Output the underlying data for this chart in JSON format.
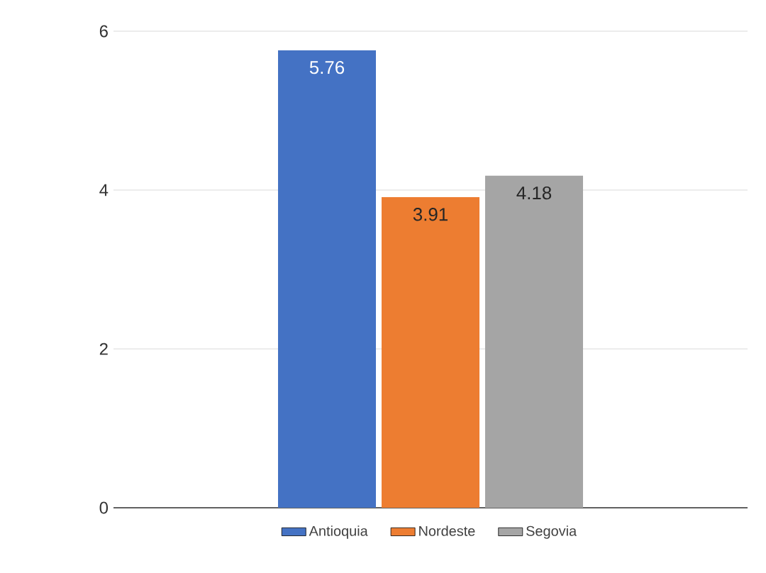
{
  "chart_data": {
    "type": "bar",
    "categories": [
      null
    ],
    "series": [
      {
        "name": "Antioquia",
        "color": "#4472c4",
        "values": [
          5.76
        ]
      },
      {
        "name": "Nordeste",
        "color": "#ed7d31",
        "values": [
          3.91
        ]
      },
      {
        "name": "Segovia",
        "color": "#a5a5a5",
        "values": [
          4.18
        ]
      }
    ],
    "ylim": [
      0,
      6
    ],
    "yticks": [
      0,
      2,
      4,
      6
    ],
    "grid": "y",
    "legend": "bottom",
    "data_labels": true
  }
}
